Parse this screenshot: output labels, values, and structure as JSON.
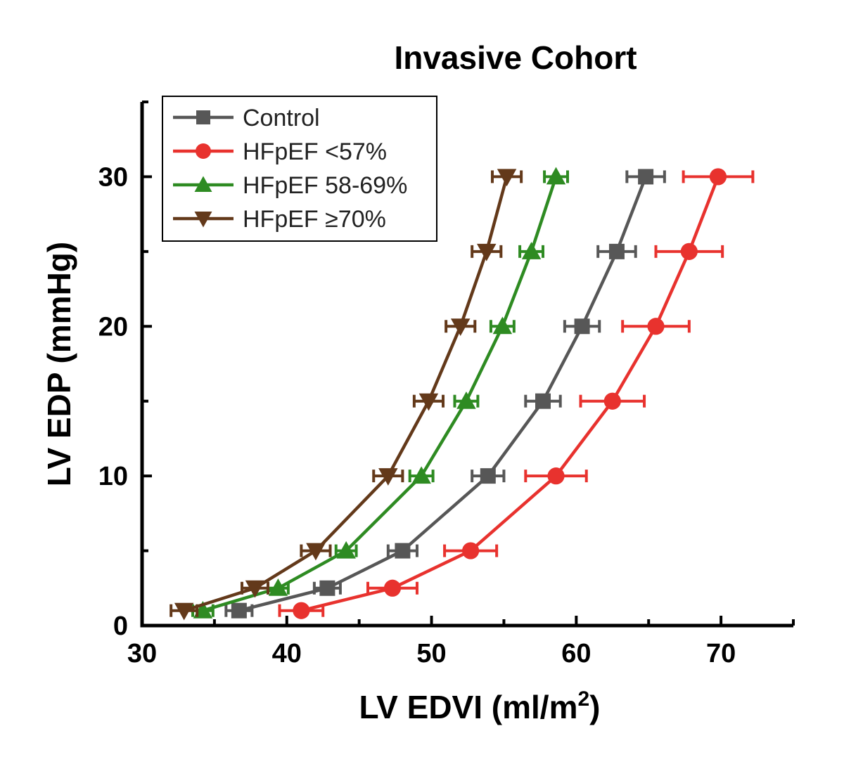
{
  "chart_data": {
    "type": "line",
    "title": "Invasive Cohort",
    "xlabel": "LV EDVI (ml/m",
    "xlabel_superscript": "2",
    "xlabel_suffix": ")",
    "ylabel": "LV EDP (mmHg)",
    "xlim": [
      30,
      75
    ],
    "ylim": [
      0,
      35
    ],
    "xticks": [
      30,
      40,
      50,
      60,
      70
    ],
    "yticks": [
      0,
      10,
      20,
      30
    ],
    "legend_position": "top-left",
    "error_bars": "horizontal",
    "series": [
      {
        "name": "Control",
        "marker": "square",
        "color": "#575757",
        "x": [
          36.7,
          42.8,
          48.0,
          53.9,
          57.7,
          60.4,
          62.8,
          64.8
        ],
        "y": [
          1,
          2.5,
          5,
          10,
          15,
          20,
          25,
          30
        ],
        "xerr": [
          0.9,
          0.9,
          1.0,
          1.1,
          1.2,
          1.2,
          1.3,
          1.3
        ]
      },
      {
        "name": "HFpEF <57%",
        "marker": "circle",
        "color": "#e8322e",
        "x": [
          41.0,
          47.3,
          52.7,
          58.6,
          62.5,
          65.5,
          67.8,
          69.8
        ],
        "y": [
          1,
          2.5,
          5,
          10,
          15,
          20,
          25,
          30
        ],
        "xerr": [
          1.5,
          1.7,
          1.8,
          2.1,
          2.2,
          2.3,
          2.3,
          2.4
        ]
      },
      {
        "name": "HFpEF 58-69%",
        "marker": "triangle-up",
        "color": "#2e8b22",
        "x": [
          34.2,
          39.4,
          44.1,
          49.3,
          52.4,
          54.9,
          56.9,
          58.6
        ],
        "y": [
          1,
          2.5,
          5,
          10,
          15,
          20,
          25,
          30
        ],
        "xerr": [
          0.7,
          0.7,
          0.7,
          0.8,
          0.8,
          0.8,
          0.8,
          0.8
        ]
      },
      {
        "name": "HFpEF ≥70%",
        "marker": "triangle-down",
        "color": "#63391a",
        "x": [
          32.9,
          37.8,
          42.0,
          47.0,
          49.8,
          52.0,
          53.8,
          55.2
        ],
        "y": [
          1,
          2.5,
          5,
          10,
          15,
          20,
          25,
          30
        ],
        "xerr": [
          0.9,
          0.9,
          1.0,
          1.0,
          1.0,
          1.0,
          1.0,
          1.0
        ]
      }
    ]
  }
}
